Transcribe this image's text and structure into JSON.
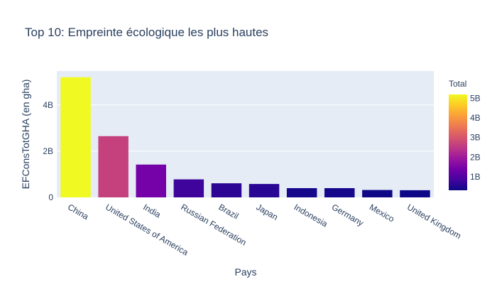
{
  "chart_data": {
    "type": "bar",
    "title": "Top 10: Empreinte écologique les plus hautes",
    "xlabel": "Pays",
    "ylabel": "EFConsTotGHA (en gha)",
    "categories": [
      "China",
      "United States of America",
      "India",
      "Russian Federation",
      "Brazil",
      "Japan",
      "Indonesia",
      "Germany",
      "Mexico",
      "United Kingdom"
    ],
    "values": [
      5.2,
      2.65,
      1.42,
      0.78,
      0.61,
      0.58,
      0.4,
      0.4,
      0.32,
      0.31
    ],
    "ylim": [
      0,
      5.47
    ],
    "yticks": [
      0,
      2,
      4
    ],
    "ytick_labels": [
      "0",
      "2B",
      "4B"
    ],
    "grid": true,
    "colorscale": "plasma",
    "colorbar": {
      "title": "Total",
      "range": [
        0.31,
        5.2
      ],
      "ticks": [
        1,
        2,
        3,
        4,
        5
      ],
      "tick_labels": [
        "1B",
        "2B",
        "3B",
        "4B",
        "5B"
      ]
    },
    "colors": {
      "plot_bg": "#e5ecf6",
      "grid": "#ffffff",
      "text": "#2a3f5f"
    }
  }
}
